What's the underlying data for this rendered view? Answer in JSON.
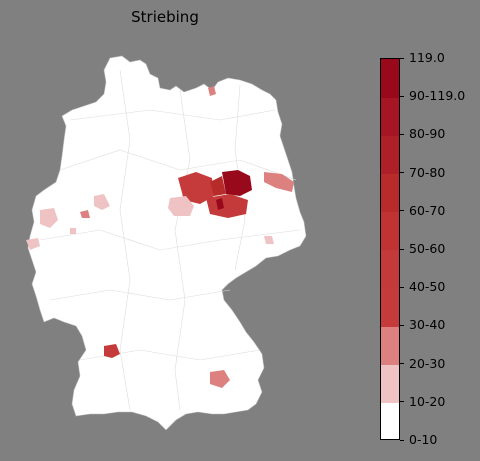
{
  "title": "Striebing",
  "legend": {
    "labels": [
      "0-10",
      "10-20",
      "20-30",
      "30-40",
      "40-50",
      "50-60",
      "60-70",
      "70-80",
      "80-90",
      "90-119.0",
      "119.0"
    ],
    "colors": [
      "#ffffff",
      "#ffffff",
      "#efc3c3",
      "#dc8080",
      "#c53a3a",
      "#c43a3a",
      "#bf3333",
      "#b82b2b",
      "#ad2028",
      "#a51523",
      "#98091c"
    ]
  },
  "map": {
    "base_color": "#ffffff",
    "border_color": "#d0d0d0"
  }
}
